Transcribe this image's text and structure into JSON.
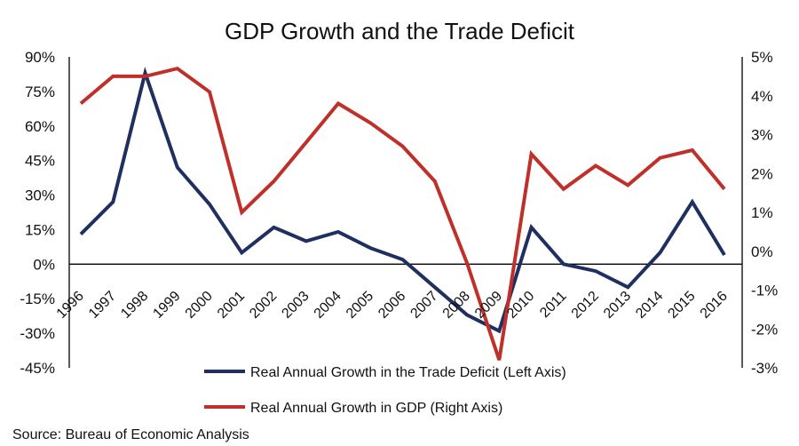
{
  "chart_data": {
    "type": "line",
    "title": "GDP Growth and the Trade Deficit",
    "categories": [
      "1996",
      "1997",
      "1998",
      "1999",
      "2000",
      "2001",
      "2002",
      "2003",
      "2004",
      "2005",
      "2006",
      "2007",
      "2008",
      "2009",
      "2010",
      "2011",
      "2012",
      "2013",
      "2014",
      "2015",
      "2016"
    ],
    "left_axis": {
      "ylim": [
        -45,
        90
      ],
      "ticks": [
        90,
        75,
        60,
        45,
        30,
        15,
        0,
        -15,
        -30,
        -45
      ],
      "tick_labels": [
        "90%",
        "75%",
        "60%",
        "45%",
        "30%",
        "15%",
        "0%",
        "-15%",
        "-30%",
        "-45%"
      ]
    },
    "right_axis": {
      "ylim": [
        -3,
        5
      ],
      "ticks": [
        5,
        4,
        3,
        2,
        1,
        0,
        -1,
        -2,
        -3
      ],
      "tick_labels": [
        "5%",
        "4%",
        "3%",
        "2%",
        "1%",
        "0%",
        "-1%",
        "-2%",
        "-3%"
      ]
    },
    "series": [
      {
        "name": "Real Annual Growth in the Trade Deficit (Left Axis)",
        "axis": "left",
        "color": "#1f2f5f",
        "values": [
          13,
          27,
          83,
          42,
          26,
          5,
          16,
          10,
          14,
          7,
          2,
          -10,
          -22,
          -29,
          16,
          0,
          -3,
          -10,
          5,
          27,
          4
        ]
      },
      {
        "name": "Real Annual Growth in GDP (Right Axis)",
        "axis": "right",
        "color": "#c0302a",
        "values": [
          3.8,
          4.5,
          4.5,
          4.7,
          4.1,
          1.0,
          1.8,
          2.8,
          3.8,
          3.3,
          2.7,
          1.8,
          -0.3,
          -2.8,
          2.5,
          1.6,
          2.2,
          1.7,
          2.4,
          2.6,
          1.6
        ]
      }
    ],
    "legend_position": "bottom-center"
  },
  "source": "Source: Bureau of Economic Analysis"
}
